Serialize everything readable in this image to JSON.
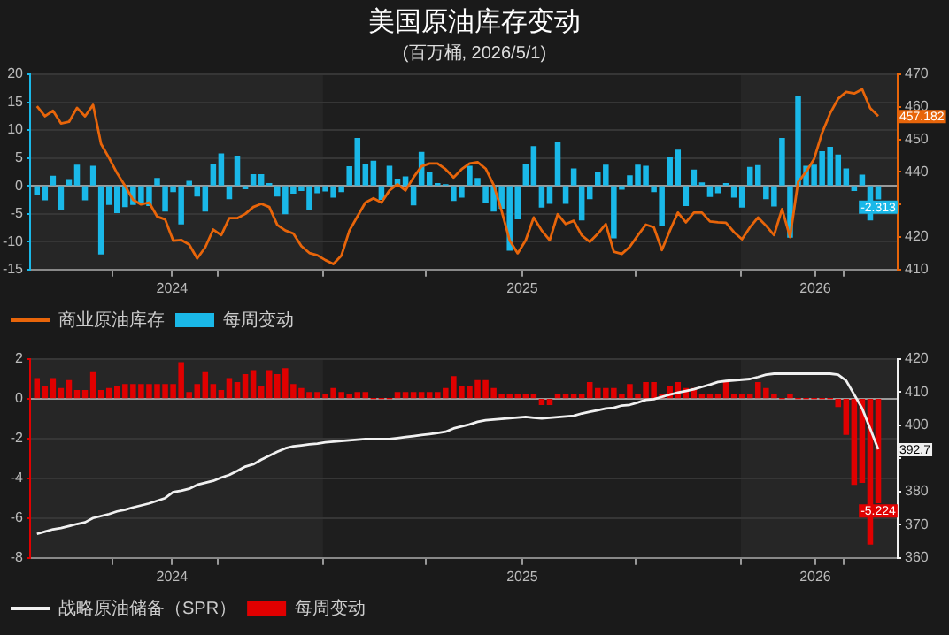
{
  "chart_data": [
    {
      "type": "bar",
      "title": "美国原油库存变动",
      "subtitle": "(百万桶, 2026/5/1)",
      "x": [
        "2024-04-26",
        "2024-05-03",
        "2024-05-10",
        "2024-05-17",
        "2024-05-24",
        "2024-05-31",
        "2024-06-07",
        "2024-06-14",
        "2024-06-21",
        "2024-06-28",
        "2024-07-05",
        "2024-07-12",
        "2024-07-19",
        "2024-07-26",
        "2024-08-02",
        "2024-08-09",
        "2024-08-16",
        "2024-08-23",
        "2024-08-30",
        "2024-09-06",
        "2024-09-13",
        "2024-09-20",
        "2024-09-27",
        "2024-10-04",
        "2024-10-11",
        "2024-10-18",
        "2024-10-25",
        "2024-11-01",
        "2024-11-08",
        "2024-11-15",
        "2024-11-22",
        "2024-11-29",
        "2024-12-06",
        "2024-12-13",
        "2024-12-20",
        "2024-12-27",
        "2025-01-03",
        "2025-01-10",
        "2025-01-17",
        "2025-01-24",
        "2025-01-31",
        "2025-02-07",
        "2025-02-14",
        "2025-02-21",
        "2025-02-28",
        "2025-03-07",
        "2025-03-14",
        "2025-03-21",
        "2025-03-28",
        "2025-04-04",
        "2025-04-11",
        "2025-04-18",
        "2025-04-25",
        "2025-05-02",
        "2025-05-09",
        "2025-05-16",
        "2025-05-23",
        "2025-05-30",
        "2025-06-06",
        "2025-06-13",
        "2025-06-20",
        "2025-06-27",
        "2025-07-04",
        "2025-07-11",
        "2025-07-18",
        "2025-07-25",
        "2025-08-01",
        "2025-08-08",
        "2025-08-15",
        "2025-08-22",
        "2025-08-29",
        "2025-09-05",
        "2025-09-12",
        "2025-09-19",
        "2025-09-26",
        "2025-10-03",
        "2025-10-10",
        "2025-10-17",
        "2025-10-24",
        "2025-10-31",
        "2025-11-07",
        "2025-11-14",
        "2025-11-21",
        "2025-11-28",
        "2025-12-05",
        "2025-12-12",
        "2025-12-19",
        "2025-12-26",
        "2026-01-02",
        "2026-01-09",
        "2026-01-16",
        "2026-01-23",
        "2026-01-30",
        "2026-02-06",
        "2026-02-13",
        "2026-02-20",
        "2026-02-27",
        "2026-03-06",
        "2026-03-13",
        "2026-03-20",
        "2026-03-27",
        "2026-04-03",
        "2026-04-10",
        "2026-04-17",
        "2026-04-24",
        "2026-05-01"
      ],
      "xlim": [
        "2024-04-20",
        "2026-05-18"
      ],
      "xticks": [
        {
          "value": "2024-07-01",
          "label": null
        },
        {
          "value": "2024-08-22",
          "label": "2024"
        },
        {
          "value": "2024-10-01",
          "label": null
        },
        {
          "value": "2025-01-01",
          "label": null
        },
        {
          "value": "2025-04-01",
          "label": null
        },
        {
          "value": "2025-06-24",
          "label": "2025"
        },
        {
          "value": "2025-10-01",
          "label": null
        },
        {
          "value": "2026-01-01",
          "label": null
        },
        {
          "value": "2026-03-07",
          "label": "2026"
        },
        {
          "value": "2026-04-01",
          "label": null
        }
      ],
      "ylim": [
        -15,
        20
      ],
      "yticks": [
        -15,
        -10,
        -5,
        0,
        5,
        10,
        15,
        20
      ],
      "y2lim": [
        410,
        470
      ],
      "y2ticks": [
        410,
        420,
        {
          "value": 430,
          "label": null
        },
        440,
        450,
        460,
        470
      ],
      "grid": "y",
      "legend": "bottom",
      "bands": [
        {
          "axis": "x",
          "from": "2024-04-20",
          "to": "2025-01-01",
          "color": "#262626"
        },
        {
          "axis": "x",
          "from": "2026-01-01",
          "to": "2026-05-18",
          "color": "#262626"
        }
      ],
      "series": [
        {
          "name": "商业原油库存",
          "type": "line",
          "axis": "y2",
          "color": "#e8650a",
          "values": [
            460.2,
            457.1,
            458.8,
            454.9,
            455.4,
            459.7,
            457.1,
            460.6,
            448.6,
            444.3,
            439.6,
            435.7,
            431.4,
            430.0,
            430.6,
            426.3,
            425.4,
            418.9,
            419.1,
            417.7,
            413.4,
            416.8,
            422.3,
            420.6,
            425.8,
            425.8,
            427.1,
            429.2,
            430.2,
            429.2,
            423.7,
            422.0,
            421.1,
            417.2,
            415.1,
            414.4,
            412.9,
            411.7,
            414.3,
            422.0,
            426.3,
            430.6,
            431.9,
            430.6,
            434.3,
            436.2,
            434.3,
            438.3,
            441.7,
            442.6,
            442.6,
            440.8,
            438.3,
            440.8,
            442.6,
            443,
            441,
            436,
            428,
            419,
            415,
            419,
            426,
            422,
            419,
            427,
            424,
            425,
            420.5,
            418.5,
            421,
            424,
            415.5,
            414.8,
            417,
            420.5,
            423.8,
            423,
            416,
            422,
            427.5,
            424.5,
            427.5,
            427.5,
            424.8,
            424.5,
            424.4,
            421.5,
            419.3,
            423,
            426,
            423.5,
            420.6,
            428.6,
            420,
            436.9,
            440,
            444,
            452,
            458,
            462.5,
            464.6,
            464.1,
            465.4,
            459.6,
            457.182
          ],
          "value_labels": [
            null,
            null,
            null,
            null,
            null,
            null,
            null,
            null,
            null,
            null,
            null,
            null,
            null,
            null,
            null,
            null,
            null,
            null,
            null,
            null,
            null,
            null,
            null,
            null,
            null,
            null,
            null,
            null,
            null,
            null,
            null,
            null,
            null,
            null,
            null,
            null,
            null,
            null,
            null,
            null,
            null,
            null,
            null,
            null,
            null,
            null,
            null,
            null,
            null,
            null,
            null,
            null,
            null,
            null,
            null,
            null,
            null,
            null,
            null,
            null,
            null,
            null,
            null,
            null,
            null,
            null,
            null,
            null,
            null,
            null,
            null,
            null,
            null,
            null,
            null,
            null,
            null,
            null,
            null,
            null,
            null,
            null,
            null,
            null,
            null,
            null,
            null,
            null,
            null,
            null,
            null,
            null,
            null,
            null,
            null,
            null,
            null,
            null,
            null,
            null,
            null,
            null,
            null,
            null,
            null,
            "457.182"
          ]
        },
        {
          "name": "每周变动",
          "color": "#1ab8e8",
          "values": [
            -1.5,
            -2.5,
            1.7,
            -4.2,
            1.1,
            3.7,
            -2.5,
            3.5,
            -12.2,
            -3.3,
            -4.8,
            -3.7,
            -3.3,
            -3.0,
            -3.5,
            1.3,
            -4.5,
            -1,
            -6.8,
            0.8,
            -1.8,
            -4.5,
            3.8,
            5.7,
            -2.3,
            5.3,
            -0.5,
            2,
            2,
            0.4,
            -1.8,
            -5,
            -1.3,
            -0.8,
            -4.2,
            -1.2,
            -0.9,
            -2,
            -1,
            3.4,
            8.5,
            3.9,
            4.4,
            -2.4,
            3.5,
            1.2,
            1.6,
            -3.4,
            6,
            2.3,
            0.4,
            0.2,
            -2.6,
            -2,
            3.5,
            1.3,
            -2.9,
            -4.5,
            -4,
            -11.5,
            -5.9,
            3.9,
            7,
            -3.8,
            -3.1,
            7.7,
            -3.1,
            3,
            -6.1,
            -2.3,
            2.3,
            3.7,
            -9.3,
            -0.6,
            1.8,
            3.7,
            3.5,
            -1,
            -7,
            5,
            6.4,
            -3.5,
            2.8,
            0.5,
            -1.9,
            -1.2,
            0.4,
            -2,
            -3.8,
            3.3,
            3.6,
            -2.3,
            -3.6,
            8.5,
            -9.2,
            16,
            3.5,
            3.7,
            6.1,
            6.9,
            5.5,
            3,
            -0.8,
            1.9,
            -6.1,
            -2.313
          ],
          "value_labels": [
            null,
            null,
            null,
            null,
            null,
            null,
            null,
            null,
            null,
            null,
            null,
            null,
            null,
            null,
            null,
            null,
            null,
            null,
            null,
            null,
            null,
            null,
            null,
            null,
            null,
            null,
            null,
            null,
            null,
            null,
            null,
            null,
            null,
            null,
            null,
            null,
            null,
            null,
            null,
            null,
            null,
            null,
            null,
            null,
            null,
            null,
            null,
            null,
            null,
            null,
            null,
            null,
            null,
            null,
            null,
            null,
            null,
            null,
            null,
            null,
            null,
            null,
            null,
            null,
            null,
            null,
            null,
            null,
            null,
            null,
            null,
            null,
            null,
            null,
            null,
            null,
            null,
            null,
            null,
            null,
            null,
            null,
            null,
            null,
            null,
            null,
            null,
            null,
            null,
            null,
            null,
            null,
            null,
            null,
            null,
            null,
            null,
            null,
            null,
            null,
            null,
            null,
            null,
            null,
            null,
            "-2.313"
          ]
        }
      ]
    },
    {
      "type": "bar",
      "x": [
        "2024-04-26",
        "2024-05-03",
        "2024-05-10",
        "2024-05-17",
        "2024-05-24",
        "2024-05-31",
        "2024-06-07",
        "2024-06-14",
        "2024-06-21",
        "2024-06-28",
        "2024-07-05",
        "2024-07-12",
        "2024-07-19",
        "2024-07-26",
        "2024-08-02",
        "2024-08-09",
        "2024-08-16",
        "2024-08-23",
        "2024-08-30",
        "2024-09-06",
        "2024-09-13",
        "2024-09-20",
        "2024-09-27",
        "2024-10-04",
        "2024-10-11",
        "2024-10-18",
        "2024-10-25",
        "2024-11-01",
        "2024-11-08",
        "2024-11-15",
        "2024-11-22",
        "2024-11-29",
        "2024-12-06",
        "2024-12-13",
        "2024-12-20",
        "2024-12-27",
        "2025-01-03",
        "2025-01-10",
        "2025-01-17",
        "2025-01-24",
        "2025-01-31",
        "2025-02-07",
        "2025-02-14",
        "2025-02-21",
        "2025-02-28",
        "2025-03-07",
        "2025-03-14",
        "2025-03-21",
        "2025-03-28",
        "2025-04-04",
        "2025-04-11",
        "2025-04-18",
        "2025-04-25",
        "2025-05-02",
        "2025-05-09",
        "2025-05-16",
        "2025-05-23",
        "2025-05-30",
        "2025-06-06",
        "2025-06-13",
        "2025-06-20",
        "2025-06-27",
        "2025-07-04",
        "2025-07-11",
        "2025-07-18",
        "2025-07-25",
        "2025-08-01",
        "2025-08-08",
        "2025-08-15",
        "2025-08-22",
        "2025-08-29",
        "2025-09-05",
        "2025-09-12",
        "2025-09-19",
        "2025-09-26",
        "2025-10-03",
        "2025-10-10",
        "2025-10-17",
        "2025-10-24",
        "2025-10-31",
        "2025-11-07",
        "2025-11-14",
        "2025-11-21",
        "2025-11-28",
        "2025-12-05",
        "2025-12-12",
        "2025-12-19",
        "2025-12-26",
        "2026-01-02",
        "2026-01-09",
        "2026-01-16",
        "2026-01-23",
        "2026-01-30",
        "2026-02-06",
        "2026-02-13",
        "2026-02-20",
        "2026-02-27",
        "2026-03-06",
        "2026-03-13",
        "2026-03-20",
        "2026-03-27",
        "2026-04-03",
        "2026-04-10",
        "2026-04-17",
        "2026-04-24",
        "2026-05-01"
      ],
      "xlim": [
        "2024-04-20",
        "2026-05-18"
      ],
      "xticks": [
        {
          "value": "2024-07-01",
          "label": null
        },
        {
          "value": "2024-08-22",
          "label": "2024"
        },
        {
          "value": "2024-10-01",
          "label": null
        },
        {
          "value": "2025-01-01",
          "label": null
        },
        {
          "value": "2025-04-01",
          "label": null
        },
        {
          "value": "2025-06-24",
          "label": "2025"
        },
        {
          "value": "2025-10-01",
          "label": null
        },
        {
          "value": "2026-01-01",
          "label": null
        },
        {
          "value": "2026-03-07",
          "label": "2026"
        },
        {
          "value": "2026-04-01",
          "label": null
        }
      ],
      "ylim": [
        -8,
        2
      ],
      "yticks": [
        -8,
        -6,
        -4,
        -2,
        0,
        2
      ],
      "y2lim": [
        360,
        420
      ],
      "y2ticks": [
        360,
        370,
        380,
        {
          "value": 390,
          "label": null
        },
        400,
        410,
        420
      ],
      "grid": "y",
      "legend": "bottom",
      "bands": [
        {
          "axis": "x",
          "from": "2024-04-20",
          "to": "2025-01-01",
          "color": "#262626"
        },
        {
          "axis": "x",
          "from": "2026-01-01",
          "to": "2026-05-18",
          "color": "#262626"
        }
      ],
      "series": [
        {
          "name": "战略原油储备（SPR）",
          "type": "line",
          "axis": "y2",
          "color": "#f0f0f0",
          "values": [
            367.2,
            367.9,
            368.6,
            369.0,
            369.6,
            370.2,
            370.7,
            372.0,
            372.6,
            373.2,
            374.0,
            374.5,
            375.2,
            375.8,
            376.4,
            377.2,
            378.0,
            379.8,
            380.2,
            380.8,
            382.0,
            382.6,
            383.2,
            384.2,
            385.0,
            386.2,
            387.5,
            388.2,
            389.6,
            390.8,
            392.0,
            393.0,
            393.6,
            393.9,
            394.2,
            394.4,
            394.8,
            395.0,
            395.2,
            395.4,
            395.6,
            395.8,
            395.8,
            395.8,
            395.8,
            396.1,
            396.4,
            396.7,
            397.0,
            397.3,
            397.6,
            398.0,
            399.0,
            399.6,
            400.2,
            401.0,
            401.5,
            401.7,
            401.9,
            402.1,
            402.3,
            402.5,
            402.2,
            402.0,
            402.2,
            402.4,
            402.6,
            402.8,
            403.5,
            404.0,
            404.5,
            405.0,
            405.2,
            405.9,
            406.1,
            406.8,
            407.6,
            407.8,
            408.5,
            409.2,
            409.8,
            410.3,
            410.8,
            411.5,
            412.2,
            413.0,
            413.3,
            413.5,
            413.7,
            413.9,
            414.5,
            415.2,
            415.5,
            415.5,
            415.5,
            415.5,
            415.5,
            415.5,
            415.5,
            415.5,
            415.2,
            413.4,
            409.2,
            405.0,
            398.9,
            392.7
          ],
          "value_labels": [
            null,
            null,
            null,
            null,
            null,
            null,
            null,
            null,
            null,
            null,
            null,
            null,
            null,
            null,
            null,
            null,
            null,
            null,
            null,
            null,
            null,
            null,
            null,
            null,
            null,
            null,
            null,
            null,
            null,
            null,
            null,
            null,
            null,
            null,
            null,
            null,
            null,
            null,
            null,
            null,
            null,
            null,
            null,
            null,
            null,
            null,
            null,
            null,
            null,
            null,
            null,
            null,
            null,
            null,
            null,
            null,
            null,
            null,
            null,
            null,
            null,
            null,
            null,
            null,
            null,
            null,
            null,
            null,
            null,
            null,
            null,
            null,
            null,
            null,
            null,
            null,
            null,
            null,
            null,
            null,
            null,
            null,
            null,
            null,
            null,
            null,
            null,
            null,
            null,
            null,
            null,
            null,
            null,
            null,
            null,
            null,
            null,
            null,
            null,
            null,
            null,
            null,
            null,
            null,
            null,
            "392.7"
          ]
        },
        {
          "name": "每周变动",
          "color": "#e00000",
          "values": [
            1.0,
            0.6,
            1.0,
            0.5,
            0.9,
            0.4,
            0.4,
            1.3,
            0.4,
            0.5,
            0.6,
            0.7,
            0.7,
            0.7,
            0.7,
            0.7,
            0.7,
            0.7,
            1.8,
            0.3,
            0.7,
            1.3,
            0.7,
            0.4,
            1.0,
            0.8,
            1.2,
            1.4,
            0.6,
            1.4,
            1.2,
            1.5,
            0.7,
            0.5,
            0.3,
            0.3,
            0.2,
            0.5,
            0.3,
            0.2,
            0.3,
            0.3,
            0,
            0,
            0,
            0.3,
            0.3,
            0.3,
            0.3,
            0.3,
            0.3,
            0.5,
            1.1,
            0.6,
            0.6,
            0.9,
            0.9,
            0.5,
            0.2,
            0.2,
            0.2,
            0.2,
            0.2,
            -0.3,
            -0.3,
            0.2,
            0.2,
            0.2,
            0.2,
            0.8,
            0.5,
            0.5,
            0.5,
            0.2,
            0.7,
            0.2,
            0.8,
            0.8,
            0.2,
            0.6,
            0.8,
            0.5,
            0.5,
            0.2,
            0.2,
            0.2,
            0.8,
            0.2,
            0.2,
            0.2,
            0.8,
            0.5,
            0.2,
            0,
            0.2,
            0,
            0,
            0,
            0,
            0,
            -0.4,
            -1.8,
            -4.3,
            -4.2,
            -7.3,
            -5.224
          ],
          "value_labels": [
            null,
            null,
            null,
            null,
            null,
            null,
            null,
            null,
            null,
            null,
            null,
            null,
            null,
            null,
            null,
            null,
            null,
            null,
            null,
            null,
            null,
            null,
            null,
            null,
            null,
            null,
            null,
            null,
            null,
            null,
            null,
            null,
            null,
            null,
            null,
            null,
            null,
            null,
            null,
            null,
            null,
            null,
            null,
            null,
            null,
            null,
            null,
            null,
            null,
            null,
            null,
            null,
            null,
            null,
            null,
            null,
            null,
            null,
            null,
            null,
            null,
            null,
            null,
            null,
            null,
            null,
            null,
            null,
            null,
            null,
            null,
            null,
            null,
            null,
            null,
            null,
            null,
            null,
            null,
            null,
            null,
            null,
            null,
            null,
            null,
            null,
            null,
            null,
            null,
            null,
            null,
            null,
            null,
            null,
            null,
            null,
            null,
            null,
            null,
            null,
            null,
            null,
            null,
            null,
            null,
            "-5.224"
          ]
        }
      ]
    }
  ]
}
